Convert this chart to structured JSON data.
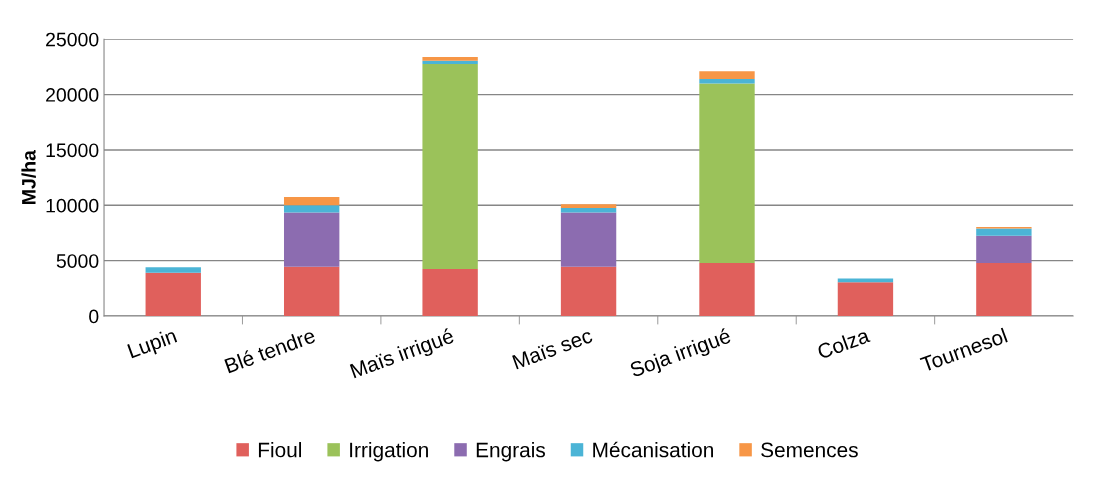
{
  "chart_data": {
    "type": "bar",
    "stacked": true,
    "ylabel": "MJ/ha",
    "categories": [
      "Lupin",
      "Blé tendre",
      "Maïs irrigué",
      "Maïs sec",
      "Soja irrigué",
      "Colza",
      "Tournesol"
    ],
    "series": [
      {
        "name": "Fioul",
        "color": "#e0605c",
        "values": [
          3900,
          4450,
          4250,
          4450,
          4800,
          3050,
          4800
        ]
      },
      {
        "name": "Irrigation",
        "color": "#9bc25a",
        "values": [
          null,
          null,
          18500,
          null,
          16200,
          null,
          null
        ]
      },
      {
        "name": "Engrais",
        "color": "#8c6cb0",
        "values": [
          null,
          4900,
          null,
          4900,
          null,
          null,
          2450
        ]
      },
      {
        "name": "Mécanisation",
        "color": "#4bb4d6",
        "values": [
          500,
          650,
          300,
          400,
          400,
          350,
          650
        ]
      },
      {
        "name": "Semences",
        "color": "#f79646",
        "values": [
          null,
          750,
          350,
          350,
          700,
          null,
          150
        ]
      }
    ],
    "ylim": [
      0,
      25000
    ],
    "yticks": [
      0,
      5000,
      10000,
      15000,
      20000,
      25000
    ],
    "grid": "y",
    "legend": "bottom"
  }
}
